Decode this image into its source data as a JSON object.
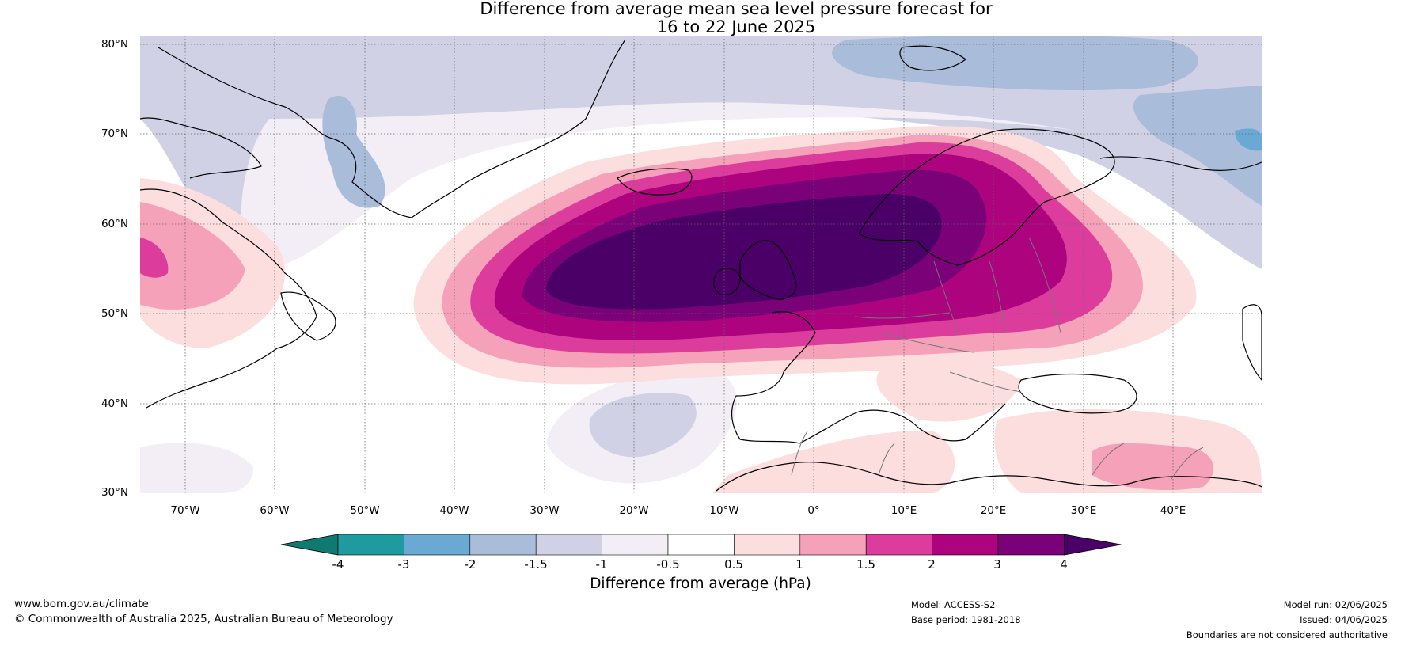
{
  "title_line1": "Difference from average mean sea level pressure forecast for",
  "title_line2": "16 to 22 June 2025",
  "lat_labels": [
    "80°N",
    "70°N",
    "60°N",
    "50°N",
    "40°N",
    "30°N"
  ],
  "lon_labels": [
    "70°W",
    "60°W",
    "50°W",
    "40°W",
    "30°W",
    "20°W",
    "10°W",
    "0°",
    "10°E",
    "20°E",
    "30°E",
    "40°E"
  ],
  "colorbar": {
    "ticks": [
      "-4",
      "-3",
      "-2",
      "-1.5",
      "-1",
      "-0.5",
      "0.5",
      "1",
      "1.5",
      "2",
      "3",
      "4"
    ],
    "colors": [
      "#0e7a70",
      "#1f9a9f",
      "#69a9d3",
      "#a9bcd9",
      "#d1d1e5",
      "#f3eef5",
      "#ffffff",
      "#fcdedf",
      "#f6a1ba",
      "#dc3d9c",
      "#ad037f",
      "#7a0177",
      "#4a0066"
    ],
    "label": "Difference from average (hPa)"
  },
  "footer": {
    "url": "www.bom.gov.au/climate",
    "copyright": "© Commonwealth of Australia 2025, Australian Bureau of Meteorology",
    "model": "Model: ACCESS-S2",
    "base_period": "Base period: 1981-2018",
    "model_run": "Model run: 02/06/2025",
    "issued": "Issued: 04/06/2025",
    "disclaimer": "Boundaries are not considered authoritative"
  }
}
